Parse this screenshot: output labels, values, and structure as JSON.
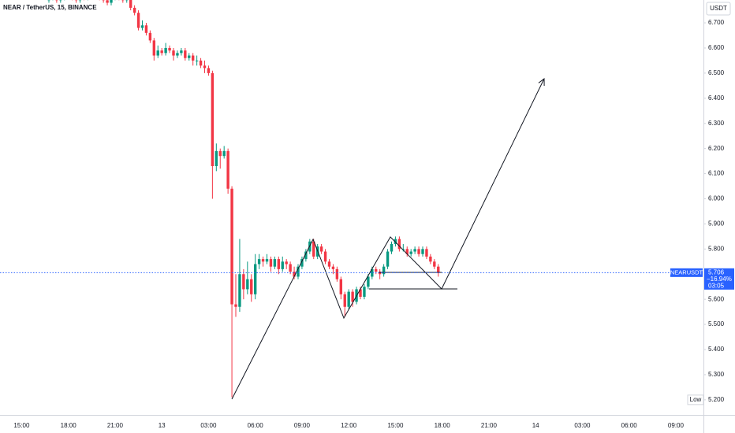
{
  "chart_data": {
    "type": "candlestick",
    "title": "NEAR / TetherUS, 15, BINANCE",
    "currency": "USDT",
    "symbol": "NEARUSDT",
    "low_label": "Low",
    "up_color": "#089981",
    "down_color": "#f23645",
    "grid": false,
    "open": [
      6.79,
      6.8,
      6.81,
      6.79,
      6.8,
      6.82,
      6.81,
      6.8,
      6.79,
      6.81,
      6.8,
      6.82,
      6.83,
      6.81,
      6.8,
      6.79,
      6.78,
      6.8,
      6.81,
      6.8,
      6.79,
      6.8,
      6.76,
      6.74,
      6.68,
      6.69,
      6.66,
      6.63,
      6.57,
      6.59,
      6.58,
      6.6,
      6.59,
      6.57,
      6.58,
      6.59,
      6.56,
      6.57,
      6.55,
      6.55,
      6.53,
      6.52,
      6.5,
      6.13,
      6.19,
      6.17,
      6.19,
      6.04,
      5.58,
      5.57,
      5.7,
      5.64,
      5.68,
      5.62,
      5.74,
      5.76,
      5.75,
      5.76,
      5.73,
      5.76,
      5.72,
      5.75,
      5.74,
      5.71,
      5.69,
      5.73,
      5.76,
      5.79,
      5.83,
      5.77,
      5.81,
      5.79,
      5.75,
      5.73,
      5.72,
      5.68,
      5.62,
      5.57,
      5.63,
      5.59,
      5.64,
      5.61,
      5.65,
      5.69,
      5.72,
      5.71,
      5.7,
      5.73,
      5.79,
      5.82,
      5.84,
      5.8,
      5.8,
      5.78,
      5.79,
      5.8,
      5.78,
      5.8,
      5.77,
      5.75,
      5.73
    ],
    "high": [
      6.81,
      6.82,
      6.82,
      6.81,
      6.83,
      6.83,
      6.82,
      6.81,
      6.82,
      6.82,
      6.83,
      6.84,
      6.84,
      6.82,
      6.81,
      6.8,
      6.81,
      6.82,
      6.82,
      6.81,
      6.81,
      6.81,
      6.77,
      6.75,
      6.71,
      6.7,
      6.67,
      6.64,
      6.61,
      6.6,
      6.62,
      6.61,
      6.6,
      6.59,
      6.6,
      6.6,
      6.58,
      6.58,
      6.57,
      6.56,
      6.55,
      6.53,
      6.51,
      6.22,
      6.2,
      6.21,
      6.2,
      6.05,
      5.7,
      5.84,
      5.72,
      5.75,
      5.7,
      5.78,
      5.78,
      5.77,
      5.78,
      5.77,
      5.77,
      5.77,
      5.77,
      5.76,
      5.75,
      5.73,
      5.74,
      5.77,
      5.8,
      5.84,
      5.84,
      5.82,
      5.82,
      5.8,
      5.76,
      5.74,
      5.73,
      5.69,
      5.63,
      5.64,
      5.64,
      5.65,
      5.65,
      5.66,
      5.7,
      5.73,
      5.73,
      5.72,
      5.74,
      5.8,
      5.83,
      5.85,
      5.85,
      5.82,
      5.81,
      5.8,
      5.81,
      5.81,
      5.81,
      5.81,
      5.78,
      5.76,
      5.74
    ],
    "low": [
      6.78,
      6.79,
      6.78,
      6.78,
      6.79,
      6.8,
      6.79,
      6.78,
      6.78,
      6.79,
      6.79,
      6.81,
      6.8,
      6.79,
      6.78,
      6.77,
      6.77,
      6.79,
      6.79,
      6.78,
      6.78,
      6.75,
      6.73,
      6.67,
      6.67,
      6.65,
      6.62,
      6.55,
      6.56,
      6.57,
      6.57,
      6.58,
      6.55,
      6.56,
      6.57,
      6.55,
      6.55,
      6.53,
      6.53,
      6.52,
      6.5,
      6.49,
      6.0,
      6.11,
      6.12,
      6.16,
      6.02,
      5.21,
      5.53,
      5.55,
      5.6,
      5.62,
      5.59,
      5.6,
      5.72,
      5.73,
      5.74,
      5.71,
      5.72,
      5.7,
      5.71,
      5.72,
      5.7,
      5.68,
      5.68,
      5.72,
      5.75,
      5.78,
      5.76,
      5.76,
      5.78,
      5.74,
      5.72,
      5.7,
      5.67,
      5.6,
      5.53,
      5.56,
      5.57,
      5.58,
      5.6,
      5.6,
      5.64,
      5.68,
      5.7,
      5.68,
      5.69,
      5.72,
      5.78,
      5.81,
      5.79,
      5.79,
      5.77,
      5.77,
      5.78,
      5.77,
      5.77,
      5.76,
      5.74,
      5.72,
      5.69
    ],
    "close": [
      6.8,
      6.81,
      6.79,
      6.8,
      6.82,
      6.81,
      6.8,
      6.79,
      6.81,
      6.8,
      6.82,
      6.83,
      6.81,
      6.8,
      6.79,
      6.78,
      6.8,
      6.81,
      6.8,
      6.79,
      6.8,
      6.76,
      6.74,
      6.68,
      6.69,
      6.66,
      6.63,
      6.57,
      6.59,
      6.58,
      6.6,
      6.59,
      6.57,
      6.58,
      6.59,
      6.56,
      6.57,
      6.55,
      6.55,
      6.53,
      6.52,
      6.5,
      6.13,
      6.19,
      6.17,
      6.19,
      6.04,
      5.58,
      5.57,
      5.7,
      5.64,
      5.68,
      5.62,
      5.74,
      5.76,
      5.75,
      5.76,
      5.73,
      5.76,
      5.72,
      5.75,
      5.74,
      5.71,
      5.69,
      5.73,
      5.76,
      5.79,
      5.83,
      5.77,
      5.81,
      5.79,
      5.75,
      5.73,
      5.72,
      5.68,
      5.62,
      5.57,
      5.63,
      5.59,
      5.64,
      5.61,
      5.65,
      5.69,
      5.72,
      5.71,
      5.7,
      5.73,
      5.79,
      5.82,
      5.84,
      5.8,
      5.8,
      5.78,
      5.79,
      5.8,
      5.78,
      5.8,
      5.77,
      5.75,
      5.73,
      5.706
    ],
    "last_price": 5.706,
    "change_label": "−16.94%",
    "countdown": "03:05",
    "low_price": {
      "value": 5.2,
      "label": "5.200"
    },
    "ylim": [
      5.14,
      6.791
    ],
    "yticks": [
      {
        "value": 6.7,
        "label": "6.700"
      },
      {
        "value": 6.6,
        "label": "6.600"
      },
      {
        "value": 6.5,
        "label": "6.500"
      },
      {
        "value": 6.4,
        "label": "6.400"
      },
      {
        "value": 6.3,
        "label": "6.300"
      },
      {
        "value": 6.2,
        "label": "6.200"
      },
      {
        "value": 6.1,
        "label": "6.100"
      },
      {
        "value": 6.0,
        "label": "6.000"
      },
      {
        "value": 5.9,
        "label": "5.900"
      },
      {
        "value": 5.8,
        "label": "5.800"
      },
      {
        "value": 5.6,
        "label": "5.600"
      },
      {
        "value": 5.5,
        "label": "5.500"
      },
      {
        "value": 5.4,
        "label": "5.400"
      },
      {
        "value": 5.3,
        "label": "5.300"
      }
    ],
    "time_labels": [
      "15:00",
      "18:00",
      "21:00",
      "13",
      "03:00",
      "06:00",
      "09:00",
      "12:00",
      "15:00",
      "18:00",
      "21:00",
      "14",
      "03:00",
      "06:00",
      "09:00"
    ]
  }
}
